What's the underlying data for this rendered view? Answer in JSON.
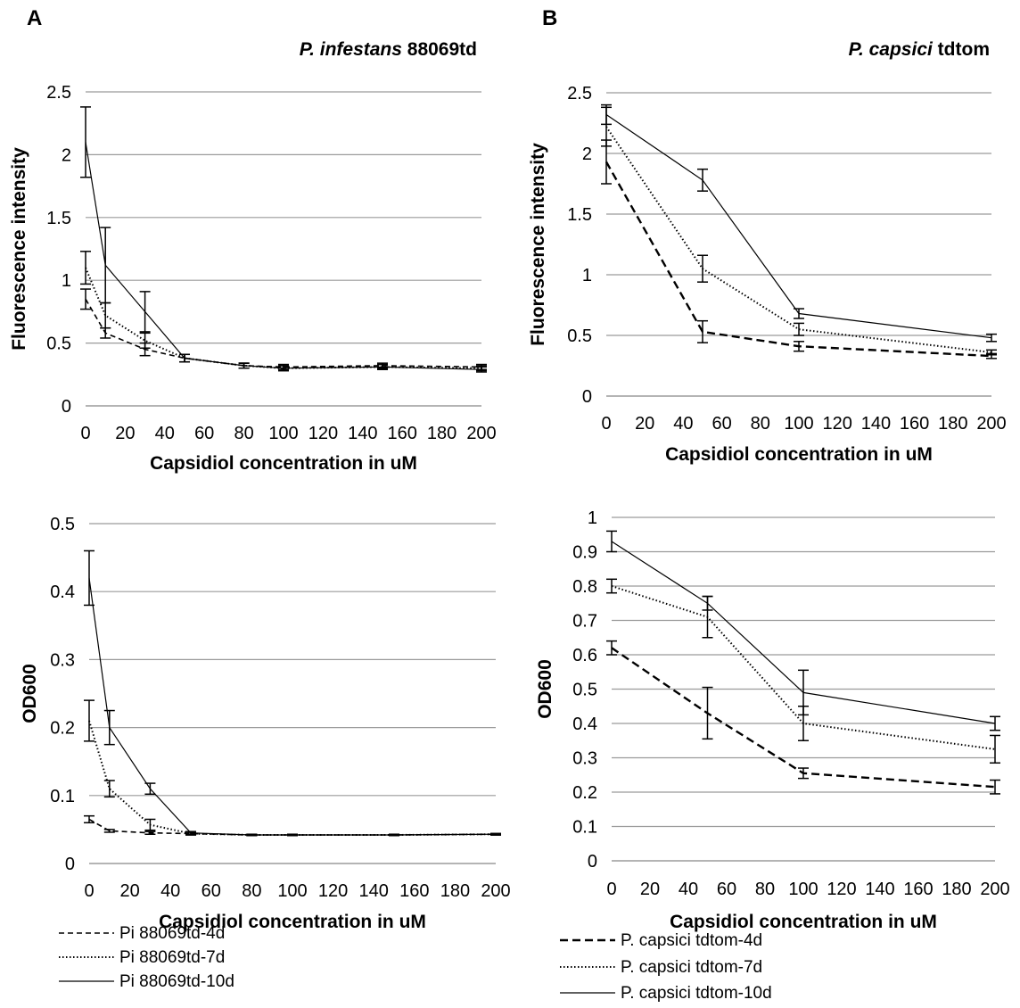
{
  "panels": {
    "A": {
      "letter": "A",
      "title_italic": "P. infestans",
      "title_rest": " 88069td"
    },
    "B": {
      "letter": "B",
      "title_italic": "P. capsici",
      "title_rest": " tdtom"
    }
  },
  "legends": {
    "A": [
      {
        "label": "Pi 88069td-4d",
        "style": "dashed"
      },
      {
        "label": "Pi 88069td-7d",
        "style": "dotted"
      },
      {
        "label": "Pi 88069td-10d",
        "style": "solid"
      }
    ],
    "B": [
      {
        "label": "P. capsici tdtom-4d",
        "style": "dashed"
      },
      {
        "label": "P. capsici tdtom-7d",
        "style": "dotted"
      },
      {
        "label": "P. capsici tdtom-10d",
        "style": "solid"
      }
    ]
  },
  "chart_data": [
    {
      "id": "A-top",
      "type": "line",
      "title": "P. infestans 88069td",
      "xlabel": "Capsidiol concentration in uM",
      "ylabel": "Fluorescence intensity",
      "categories": [
        "0",
        "20",
        "40",
        "60",
        "80",
        "100",
        "120",
        "140",
        "160",
        "180",
        "200"
      ],
      "x_scale": "category-ticks",
      "ylim": [
        0,
        2.5
      ],
      "yticks": [
        "0",
        "0.5",
        "1",
        "1.5",
        "2",
        "2.5"
      ],
      "grid": true,
      "x": [
        0,
        10,
        30,
        50,
        80,
        100,
        150,
        200
      ],
      "series": [
        {
          "name": "Pi 88069td-4d",
          "style": "dashed",
          "values": [
            0.85,
            0.58,
            0.45,
            0.38,
            0.32,
            0.31,
            0.32,
            0.31
          ],
          "err": [
            0.08,
            0.04,
            0.05,
            0.03,
            0.02,
            0.02,
            0.02,
            0.02
          ]
        },
        {
          "name": "Pi 88069td-7d",
          "style": "dotted",
          "values": [
            1.1,
            0.72,
            0.52,
            0.38,
            0.32,
            0.3,
            0.31,
            0.3
          ],
          "err": [
            0.13,
            0.1,
            0.06,
            0.03,
            0.02,
            0.02,
            0.02,
            0.02
          ]
        },
        {
          "name": "Pi 88069td-10d",
          "style": "solid",
          "values": [
            2.1,
            1.12,
            0.75,
            0.38,
            0.32,
            0.3,
            0.31,
            0.29
          ],
          "err": [
            0.28,
            0.3,
            0.16,
            0.03,
            0.02,
            0.02,
            0.02,
            0.02
          ]
        }
      ]
    },
    {
      "id": "A-bottom",
      "type": "line",
      "xlabel": "Capsidiol concentration in uM",
      "ylabel": "OD600",
      "categories": [
        "0",
        "20",
        "40",
        "60",
        "80",
        "100",
        "120",
        "140",
        "160",
        "180",
        "200"
      ],
      "x_scale": "category-ticks",
      "ylim": [
        0,
        0.5
      ],
      "yticks": [
        "0",
        "0.1",
        "0.2",
        "0.3",
        "0.4",
        "0.5"
      ],
      "grid": true,
      "x": [
        0,
        10,
        30,
        50,
        80,
        100,
        150,
        200
      ],
      "series": [
        {
          "name": "Pi 88069td-4d",
          "style": "dashed",
          "values": [
            0.065,
            0.048,
            0.045,
            0.044,
            0.042,
            0.042,
            0.042,
            0.043
          ],
          "err": [
            0.005,
            0.002,
            0.002,
            0.002,
            0.001,
            0.001,
            0.001,
            0.001
          ]
        },
        {
          "name": "Pi 88069td-7d",
          "style": "dotted",
          "values": [
            0.21,
            0.11,
            0.057,
            0.044,
            0.042,
            0.042,
            0.042,
            0.043
          ],
          "err": [
            0.03,
            0.012,
            0.008,
            0.002,
            0.001,
            0.001,
            0.001,
            0.001
          ]
        },
        {
          "name": "Pi 88069td-10d",
          "style": "solid",
          "values": [
            0.42,
            0.2,
            0.11,
            0.045,
            0.042,
            0.042,
            0.042,
            0.043
          ],
          "err": [
            0.04,
            0.025,
            0.008,
            0.002,
            0.001,
            0.001,
            0.001,
            0.001
          ]
        }
      ]
    },
    {
      "id": "B-top",
      "type": "line",
      "title": "P. capsici tdtom",
      "xlabel": "Capsidiol concentration in uM",
      "ylabel": "Fluorescence intensity",
      "categories": [
        "0",
        "20",
        "40",
        "60",
        "80",
        "100",
        "120",
        "140",
        "160",
        "180",
        "200"
      ],
      "x_scale": "category-ticks",
      "ylim": [
        0,
        2.5
      ],
      "yticks": [
        "0",
        "0.5",
        "1",
        "1.5",
        "2",
        "2.5"
      ],
      "grid": true,
      "x": [
        0,
        50,
        100,
        200
      ],
      "series": [
        {
          "name": "P. capsici tdtom-4d",
          "style": "dashed",
          "values": [
            1.93,
            0.53,
            0.41,
            0.33
          ],
          "err": [
            0.18,
            0.09,
            0.04,
            0.02
          ]
        },
        {
          "name": "P. capsici tdtom-7d",
          "style": "dotted",
          "values": [
            2.22,
            1.05,
            0.55,
            0.36
          ],
          "err": [
            0.16,
            0.11,
            0.05,
            0.02
          ]
        },
        {
          "name": "P. capsici tdtom-10d",
          "style": "solid",
          "values": [
            2.32,
            1.78,
            0.68,
            0.48
          ],
          "err": [
            0.08,
            0.09,
            0.04,
            0.03
          ]
        }
      ]
    },
    {
      "id": "B-bottom",
      "type": "line",
      "xlabel": "Capsidiol concentration in uM",
      "ylabel": "OD600",
      "categories": [
        "0",
        "20",
        "40",
        "60",
        "80",
        "100",
        "120",
        "140",
        "160",
        "180",
        "200"
      ],
      "x_scale": "category-ticks",
      "ylim": [
        0,
        1
      ],
      "yticks": [
        "0",
        "0.1",
        "0.2",
        "0.3",
        "0.4",
        "0.5",
        "0.6",
        "0.7",
        "0.8",
        "0.9",
        "1"
      ],
      "grid": true,
      "x": [
        0,
        50,
        100,
        200
      ],
      "series": [
        {
          "name": "P. capsici tdtom-4d",
          "style": "dashed",
          "values": [
            0.62,
            0.43,
            0.255,
            0.215
          ],
          "err": [
            0.02,
            0.075,
            0.015,
            0.02
          ]
        },
        {
          "name": "P. capsici tdtom-7d",
          "style": "dotted",
          "values": [
            0.8,
            0.71,
            0.4,
            0.325
          ],
          "err": [
            0.02,
            0.06,
            0.05,
            0.04
          ]
        },
        {
          "name": "P. capsici tdtom-10d",
          "style": "solid",
          "values": [
            0.93,
            0.75,
            0.49,
            0.4
          ],
          "err": [
            0.03,
            0.02,
            0.065,
            0.02
          ]
        }
      ]
    }
  ]
}
